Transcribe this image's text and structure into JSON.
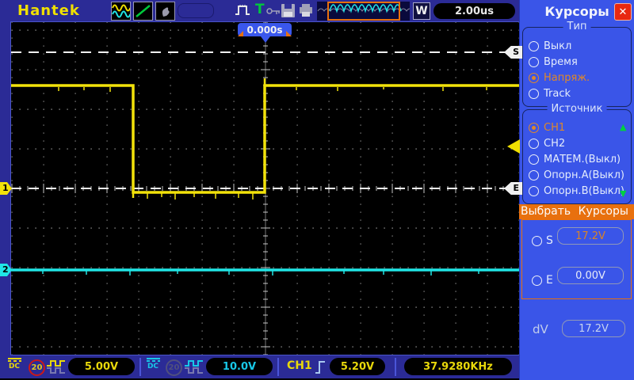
{
  "brand": "Hantek",
  "topbar": {
    "w_label": "W",
    "timebase": "2.00us"
  },
  "display": {
    "trigger_time": "0.000s",
    "ch1_label": "1",
    "ch2_label": "2",
    "cursor_s": "S",
    "cursor_e": "E"
  },
  "sidebar": {
    "title": "Курсоры",
    "close_glyph": "✕",
    "type_group": {
      "label": "Тип",
      "options": [
        {
          "label": "Выкл",
          "selected": false
        },
        {
          "label": "Время",
          "selected": false
        },
        {
          "label": "Напряж.",
          "selected": true
        },
        {
          "label": "Track",
          "selected": false
        }
      ]
    },
    "source_group": {
      "label": "Источник",
      "options": [
        {
          "label": "CH1",
          "selected": true
        },
        {
          "label": "CH2",
          "selected": false
        },
        {
          "label": "МАТЕМ.(Выкл)",
          "selected": false
        },
        {
          "label": "Опорн.А(Выкл)",
          "selected": false
        },
        {
          "label": "Опорн.В(Выкл)",
          "selected": false
        }
      ]
    },
    "select_cursor": {
      "header": "Выбрать Курсоры",
      "s_label": "S",
      "s_value": "17.2V",
      "e_label": "E",
      "e_value": "0.00V"
    },
    "dv": {
      "label": "dV",
      "value": "17.2V"
    }
  },
  "bottombar": {
    "ch1": {
      "coupling": "DC",
      "bandwidth": "20",
      "scale": "5.00V"
    },
    "ch2": {
      "coupling": "DC",
      "bandwidth": "20",
      "scale": "10.0V"
    },
    "trigger": {
      "source": "CH1",
      "level": "5.20V"
    },
    "frequency": "37.9280KHz"
  },
  "colors": {
    "ch1": "#F2E20A",
    "ch2": "#20E6E6",
    "accent_orange": "#E8700E",
    "sidebar_blue": "#3A55E8",
    "bar_indigo": "#2B2B96"
  }
}
